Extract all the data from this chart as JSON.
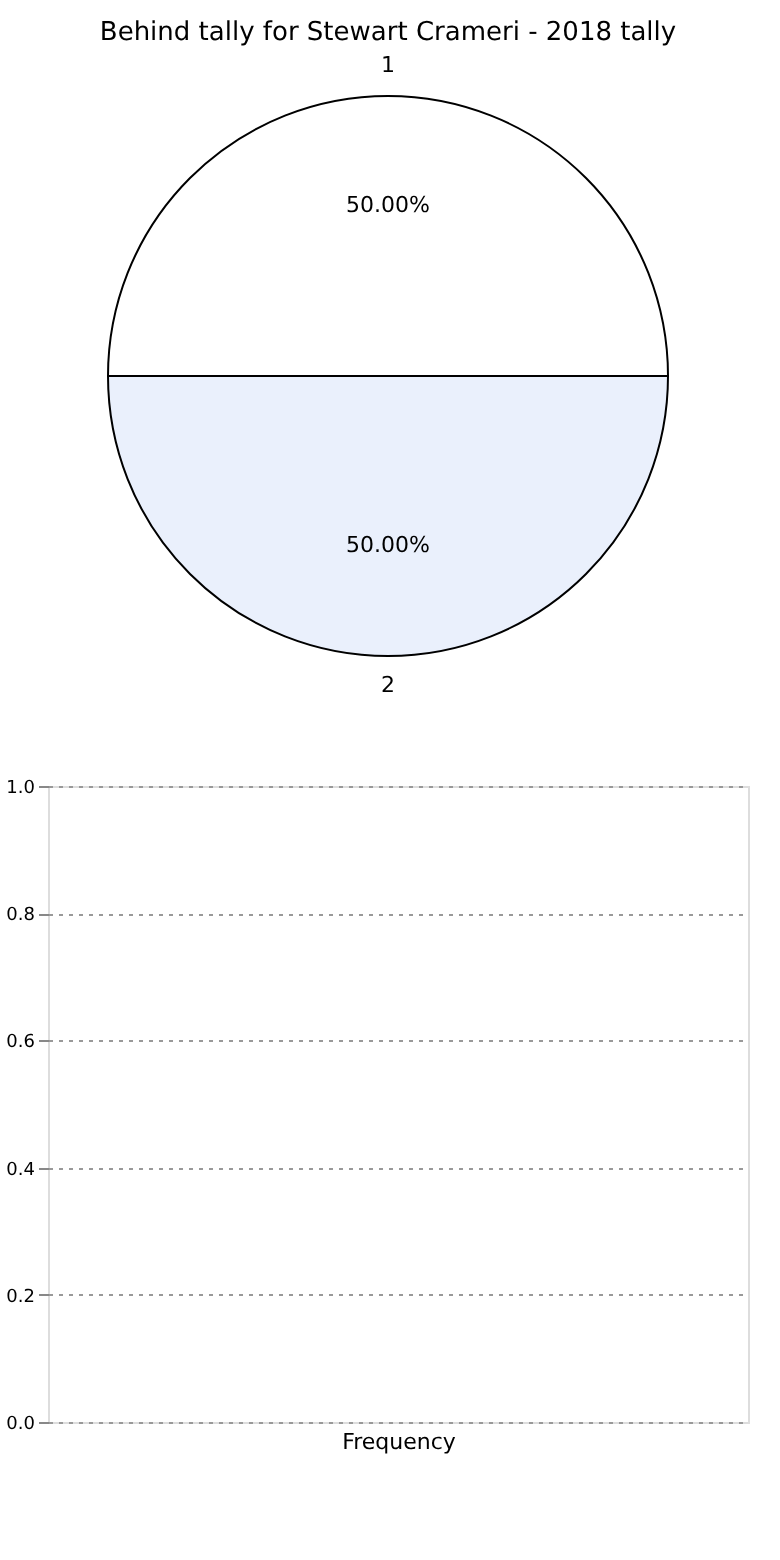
{
  "chart_data": [
    {
      "type": "pie",
      "title": "Behind tally for Stewart Crameri - 2018 tally",
      "categories": [
        "1",
        "2"
      ],
      "values": [
        50,
        50
      ],
      "colors": [
        "#ffffff",
        "#eaf0fc"
      ],
      "value_labels": [
        "50.00%",
        "50.00%"
      ]
    },
    {
      "type": "bar",
      "xlabel": "Frequency",
      "categories": [
        null
      ],
      "values": [
        null
      ],
      "ylim": [
        0,
        1
      ],
      "yticks": [
        {
          "value": 0,
          "label": "0.0"
        },
        {
          "value": 0.2,
          "label": "0.2"
        },
        {
          "value": 0.4,
          "label": "0.4"
        },
        {
          "value": 0.6,
          "label": "0.6"
        },
        {
          "value": 0.8,
          "label": "0.8"
        },
        {
          "value": 1,
          "label": "1.0"
        }
      ],
      "grid": "y"
    }
  ]
}
